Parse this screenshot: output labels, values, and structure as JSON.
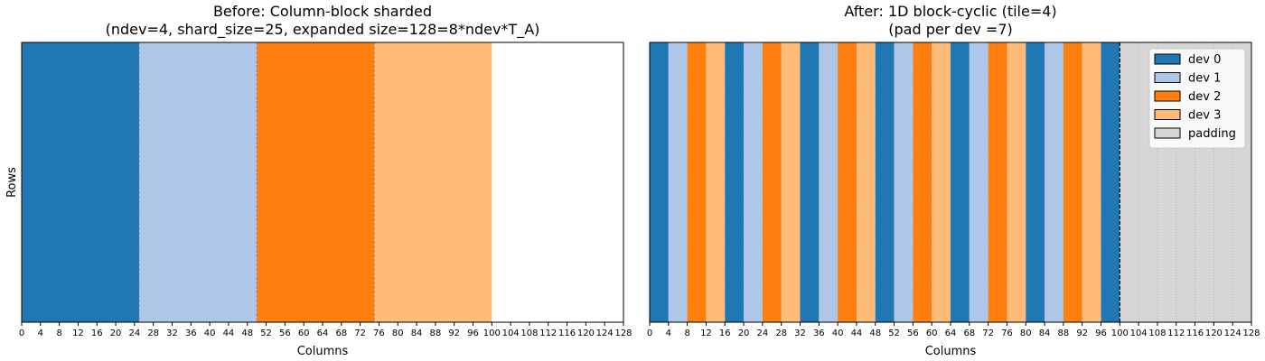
{
  "colors": {
    "dev0": "#1f77b4",
    "dev1": "#aec7e8",
    "dev2": "#ff7f0e",
    "dev3": "#ffbb78",
    "padding": "#d6d6d6"
  },
  "chart_data": [
    {
      "type": "heatmap",
      "title_line1": "Before: Column-block sharded",
      "title_line2": "(ndev=4, shard_size=25, expanded size=128=8*ndev*T_A)",
      "xlabel": "Columns",
      "ylabel": "Rows",
      "xlim": [
        0,
        128
      ],
      "xticks": [
        0,
        4,
        8,
        12,
        16,
        20,
        24,
        28,
        32,
        36,
        40,
        44,
        48,
        52,
        56,
        60,
        64,
        68,
        72,
        76,
        80,
        84,
        88,
        92,
        96,
        100,
        104,
        108,
        112,
        116,
        120,
        124,
        128
      ],
      "blocks": [
        {
          "start": 0,
          "end": 25,
          "device": "dev0"
        },
        {
          "start": 25,
          "end": 50,
          "device": "dev1"
        },
        {
          "start": 50,
          "end": 75,
          "device": "dev2"
        },
        {
          "start": 75,
          "end": 100,
          "device": "dev3"
        }
      ],
      "boundaries": [
        25,
        50,
        75
      ]
    },
    {
      "type": "heatmap",
      "title_line1": "After: 1D block-cyclic (tile=4)",
      "title_line2": "(pad per dev =7)",
      "xlabel": "Columns",
      "ylabel": "",
      "xlim": [
        0,
        128
      ],
      "xticks": [
        0,
        4,
        8,
        12,
        16,
        20,
        24,
        28,
        32,
        36,
        40,
        44,
        48,
        52,
        56,
        60,
        64,
        68,
        72,
        76,
        80,
        84,
        88,
        92,
        96,
        100,
        104,
        108,
        112,
        116,
        120,
        124,
        128
      ],
      "tile": 4,
      "data_end": 100,
      "cycle": [
        "dev0",
        "dev1",
        "dev2",
        "dev3"
      ],
      "padding_range": [
        100,
        128
      ],
      "legend": {
        "position": "upper right",
        "entries": [
          {
            "key": "dev0",
            "label": "dev 0"
          },
          {
            "key": "dev1",
            "label": "dev 1"
          },
          {
            "key": "dev2",
            "label": "dev 2"
          },
          {
            "key": "dev3",
            "label": "dev 3"
          },
          {
            "key": "padding",
            "label": "padding"
          }
        ]
      }
    }
  ]
}
